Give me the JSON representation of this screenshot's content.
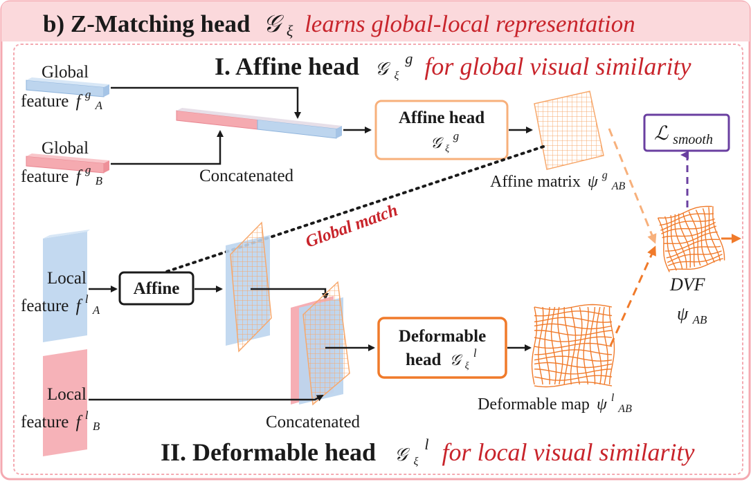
{
  "header": {
    "prefix": "b) Z-Matching head",
    "symbol": "𝒢",
    "symbol_sub": "ξ",
    "description": "learns global-local representation"
  },
  "section1": {
    "title": "I. Affine head",
    "symbol": "𝒢",
    "symbol_sub": "ξ",
    "symbol_sup": "g",
    "description": "for global visual similarity"
  },
  "section2": {
    "title": "II. Deformable head",
    "symbol": "𝒢",
    "symbol_sub": "ξ",
    "symbol_sup": "l",
    "description": "for local visual similarity"
  },
  "inputs": {
    "global_a": {
      "line1": "Global",
      "line2_text": "feature",
      "var": "f",
      "sup": "g",
      "sub": "A"
    },
    "global_b": {
      "line1": "Global",
      "line2_text": "feature",
      "var": "f",
      "sup": "g",
      "sub": "B"
    },
    "local_a": {
      "line1": "Local",
      "line2_text": "feature",
      "var": "f",
      "sup": "l",
      "sub": "A"
    },
    "local_b": {
      "line1": "Local",
      "line2_text": "feature",
      "var": "f",
      "sup": "l",
      "sub": "B"
    }
  },
  "labels": {
    "concatenated_top": "Concatenated",
    "concatenated_bottom": "Concatenated",
    "global_match": "Global match"
  },
  "boxes": {
    "affine_head": {
      "title": "Affine head",
      "symbol": "𝒢",
      "sub": "ξ",
      "sup": "g"
    },
    "affine": {
      "title": "Affine"
    },
    "deformable_head": {
      "line1": "Deformable",
      "line2": "head",
      "symbol": "𝒢",
      "sub": "ξ",
      "sup": "l"
    },
    "loss": {
      "symbol": "ℒ",
      "sub": "smooth"
    }
  },
  "outputs": {
    "affine_matrix": {
      "text": "Affine matrix",
      "var": "ψ",
      "sup": "g",
      "sub": "AB"
    },
    "deformable_map": {
      "text": "Deformable map",
      "var": "ψ",
      "sup": "l",
      "sub": "AB"
    },
    "dvf": {
      "title": "DVF",
      "var": "ψ",
      "sub": "AB"
    }
  },
  "colors": {
    "header_bg": "#fbd9dc",
    "panel_border": "#f4a9b1",
    "accent_red": "#c8242b",
    "orange": "#f07a2a",
    "orange_light": "#f7b07b",
    "blue_feature": "#bdd5ee",
    "pink_feature": "#f5aab0",
    "purple": "#6a3fa0",
    "text": "#1a1a1a"
  }
}
